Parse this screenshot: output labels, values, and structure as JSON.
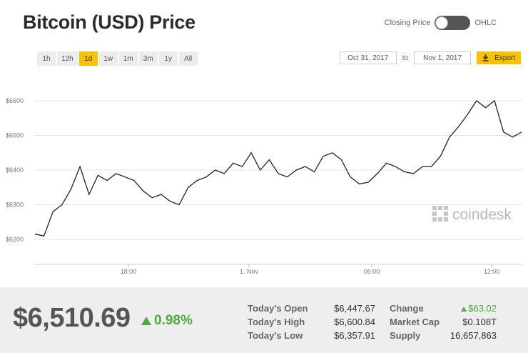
{
  "header": {
    "title": "Bitcoin (USD) Price"
  },
  "toggle": {
    "left_label": "Closing Price",
    "right_label": "OHLC"
  },
  "ranges": [
    "1h",
    "12h",
    "1d",
    "1w",
    "1m",
    "3m",
    "1y",
    "All"
  ],
  "active_range": "1d",
  "dates": {
    "from": "Oct 31, 2017",
    "separator": "to",
    "to": "Nov 1, 2017",
    "export_label": "Export"
  },
  "colors": {
    "accent": "#f7c200",
    "up": "#4cae3a",
    "line": "#222222"
  },
  "chart_data": {
    "type": "line",
    "y_ticks": [
      "$6600",
      "$6500",
      "$6400",
      "$6300",
      "$6200"
    ],
    "x_ticks": [
      "18:00",
      "1. Nov",
      "06:00",
      "12:00"
    ],
    "ylim": [
      6200,
      6600
    ],
    "grid": true,
    "series": [
      {
        "values": [
          6215,
          6210,
          6280,
          6300,
          6345,
          6410,
          6330,
          6385,
          6370,
          6390,
          6380,
          6370,
          6340,
          6320,
          6330,
          6310,
          6300,
          6350,
          6370,
          6380,
          6400,
          6390,
          6420,
          6410,
          6450,
          6400,
          6430,
          6390,
          6380,
          6400,
          6410,
          6395,
          6440,
          6450,
          6430,
          6380,
          6360,
          6365,
          6390,
          6420,
          6410,
          6395,
          6390,
          6410,
          6410,
          6440,
          6495,
          6525,
          6560,
          6600,
          6580,
          6600,
          6510,
          6495,
          6510
        ]
      }
    ]
  },
  "watermark": "coindesk",
  "stats": {
    "price": "$6,510.69",
    "change_pct": "0.98%",
    "today_open_label": "Today's Open",
    "today_open": "$6,447.67",
    "today_high_label": "Today's High",
    "today_high": "$6,600.84",
    "today_low_label": "Today's Low",
    "today_low": "$6,357.91",
    "change_label": "Change",
    "change": "$63.02",
    "market_cap_label": "Market Cap",
    "market_cap": "$0.108T",
    "supply_label": "Supply",
    "supply": "16,657,863"
  }
}
